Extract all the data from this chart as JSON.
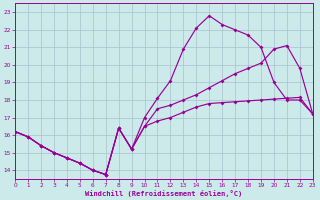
{
  "xlabel": "Windchill (Refroidissement éolien,°C)",
  "bg_color": "#cceaea",
  "grid_color": "#aabfcc",
  "line_color": "#990099",
  "xlim": [
    0,
    23
  ],
  "ylim": [
    13.5,
    23.5
  ],
  "xticks": [
    0,
    1,
    2,
    3,
    4,
    5,
    6,
    7,
    8,
    9,
    10,
    11,
    12,
    13,
    14,
    15,
    16,
    17,
    18,
    19,
    20,
    21,
    22,
    23
  ],
  "yticks": [
    14,
    15,
    16,
    17,
    18,
    19,
    20,
    21,
    22,
    23
  ],
  "line1_x": [
    0,
    1,
    2,
    3,
    4,
    5,
    6,
    7,
    8,
    9,
    10,
    11,
    12,
    13,
    14,
    15,
    16,
    17,
    18,
    19,
    20,
    21,
    22,
    23
  ],
  "line1_y": [
    16.2,
    15.9,
    15.4,
    15.0,
    14.7,
    14.4,
    14.0,
    13.75,
    16.4,
    15.2,
    16.5,
    16.8,
    17.0,
    17.3,
    17.6,
    17.8,
    17.85,
    17.9,
    17.95,
    18.0,
    18.05,
    18.1,
    18.15,
    17.2
  ],
  "line2_x": [
    0,
    1,
    2,
    3,
    4,
    5,
    6,
    7,
    8,
    9,
    10,
    11,
    12,
    13,
    14,
    15,
    16,
    17,
    18,
    19,
    20,
    21,
    22,
    23
  ],
  "line2_y": [
    16.2,
    15.9,
    15.4,
    15.0,
    14.7,
    14.4,
    14.0,
    13.75,
    16.4,
    15.2,
    17.0,
    18.1,
    19.1,
    20.9,
    22.1,
    22.8,
    22.3,
    22.0,
    21.7,
    21.0,
    19.0,
    18.0,
    18.0,
    17.2
  ],
  "line3_x": [
    0,
    1,
    2,
    3,
    4,
    5,
    6,
    7,
    8,
    9,
    10,
    11,
    12,
    13,
    14,
    15,
    16,
    17,
    18,
    19,
    20,
    21,
    22,
    23
  ],
  "line3_y": [
    16.2,
    15.9,
    15.4,
    15.0,
    14.7,
    14.4,
    14.0,
    13.75,
    16.4,
    15.2,
    16.5,
    17.5,
    17.7,
    18.0,
    18.3,
    18.7,
    19.1,
    19.5,
    19.8,
    20.1,
    20.9,
    21.1,
    19.8,
    17.2
  ]
}
